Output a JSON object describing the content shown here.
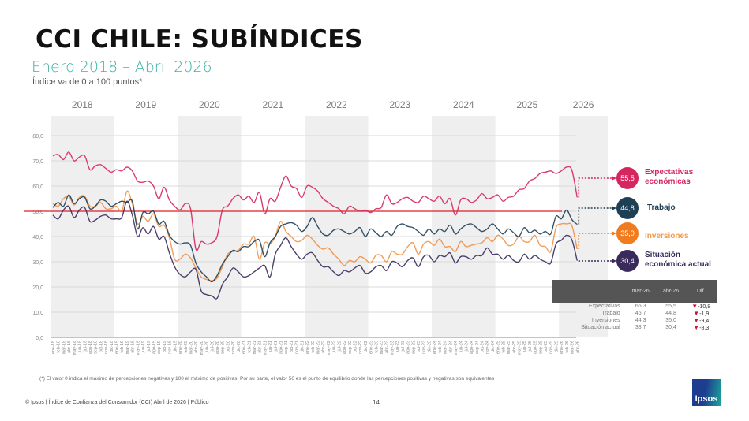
{
  "header": {
    "title": "CCI CHILE: SUBÍNDICES",
    "subtitle": "Enero 2018 – Abril 2026",
    "scale_note": "Índice va de 0 a 100 puntos*"
  },
  "chart_data": {
    "type": "line",
    "title": "CCI CHILE: SUBÍNDICES",
    "subtitle": "Enero 2018 – Abril 2026",
    "ylabel": "",
    "xlabel": "",
    "ylim": [
      0,
      80
    ],
    "yticks": [
      "0,0",
      "10,0",
      "20,0",
      "30,0",
      "40,0",
      "50,0",
      "60,0",
      "70,0",
      "80,0"
    ],
    "grid": true,
    "reference_line": {
      "value": 50,
      "color": "#e01e25"
    },
    "years": [
      "2018",
      "2019",
      "2020",
      "2021",
      "2022",
      "2023",
      "2024",
      "2025",
      "2026"
    ],
    "x": [
      "ene-18",
      "feb-18",
      "mar-18",
      "abr-18",
      "may-18",
      "jun-18",
      "jul-18",
      "ago-18",
      "sep-18",
      "oct-18",
      "nov-18",
      "dic-18",
      "ene-19",
      "feb-19",
      "mar-19",
      "abr-19",
      "may-19",
      "jun-19",
      "jul-19",
      "ago-19",
      "sep-19",
      "oct-19",
      "nov-19",
      "dic-19",
      "ene-20",
      "feb-20",
      "mar-20",
      "abr-20",
      "may-20",
      "jun-20",
      "jul-20",
      "ago-20",
      "sep-20",
      "oct-20",
      "nov-20",
      "dic-20",
      "ene-21",
      "feb-21",
      "mar-21",
      "abr-21",
      "may-21",
      "jun-21",
      "jul-21",
      "ago-21",
      "sep-21",
      "oct-21",
      "nov-21",
      "dic-21",
      "ene-22",
      "feb-22",
      "mar-22",
      "abr-22",
      "may-22",
      "jun-22",
      "jul-22",
      "ago-22",
      "sep-22",
      "oct-22",
      "nov-22",
      "dic-22",
      "ene-23",
      "feb-23",
      "mar-23",
      "abr-23",
      "may-23",
      "jun-23",
      "jul-23",
      "ago-23",
      "sep-23",
      "oct-23",
      "nov-23",
      "dic-23",
      "ene-24",
      "feb-24",
      "mar-24",
      "abr-24",
      "may-24",
      "jun-24",
      "jul-24",
      "ago-24",
      "sep-24",
      "oct-24",
      "nov-24",
      "dic-24",
      "ene-25",
      "feb-25",
      "mar-25",
      "abr-25",
      "may-25",
      "jun-25",
      "jul-25",
      "ago-25",
      "sep-25",
      "oct-25",
      "nov-25",
      "dic-25",
      "ene-26",
      "feb-26",
      "mar-26",
      "abr-26"
    ],
    "series": [
      {
        "name": "Expectativas económicas",
        "color": "#d6265f",
        "values": [
          72.0,
          72.5,
          70.5,
          73.5,
          70.0,
          71.5,
          72.0,
          66.5,
          68.0,
          68.5,
          67.0,
          65.5,
          66.5,
          66.0,
          67.5,
          66.0,
          62.0,
          61.5,
          62.0,
          60.0,
          55.0,
          59.5,
          54.5,
          52.0,
          50.5,
          53.0,
          51.0,
          35.0,
          38.0,
          37.0,
          37.5,
          40.0,
          50.5,
          52.0,
          55.0,
          56.5,
          54.5,
          56.0,
          53.5,
          57.5,
          49.0,
          55.0,
          54.0,
          59.5,
          64.0,
          60.0,
          59.0,
          55.5,
          60.0,
          59.5,
          58.0,
          55.0,
          53.5,
          52.0,
          51.0,
          49.0,
          52.0,
          51.0,
          50.0,
          50.5,
          49.5,
          51.0,
          51.5,
          56.5,
          53.0,
          53.5,
          55.0,
          55.5,
          54.0,
          53.5,
          56.0,
          55.0,
          54.0,
          56.0,
          53.0,
          55.0,
          48.5,
          54.5,
          55.0,
          53.5,
          54.5,
          57.0,
          55.0,
          55.5,
          56.5,
          54.0,
          55.5,
          56.0,
          58.5,
          59.0,
          62.0,
          63.0,
          65.0,
          65.5,
          66.0,
          65.0,
          66.0,
          67.5,
          66.3,
          55.5
        ]
      },
      {
        "name": "Trabajo",
        "color": "#1f3f55",
        "values": [
          51.5,
          53.5,
          52.0,
          56.5,
          53.0,
          55.0,
          55.5,
          51.0,
          52.0,
          54.5,
          54.0,
          52.0,
          53.0,
          54.0,
          53.5,
          54.0,
          43.0,
          49.5,
          49.0,
          50.0,
          45.0,
          46.0,
          40.5,
          38.0,
          37.0,
          37.5,
          36.5,
          29.5,
          26.0,
          24.0,
          22.0,
          24.5,
          29.0,
          32.0,
          34.5,
          34.0,
          36.0,
          36.0,
          38.0,
          38.5,
          32.0,
          37.5,
          40.0,
          44.0,
          45.0,
          45.5,
          44.5,
          42.0,
          44.0,
          47.5,
          44.0,
          41.0,
          40.5,
          42.5,
          43.0,
          42.0,
          41.0,
          42.0,
          43.5,
          40.0,
          43.0,
          41.5,
          40.0,
          42.0,
          40.5,
          44.0,
          45.0,
          44.0,
          43.5,
          42.0,
          40.5,
          43.0,
          41.0,
          43.0,
          42.0,
          44.5,
          41.0,
          43.0,
          44.5,
          45.0,
          43.5,
          42.0,
          43.0,
          45.0,
          43.0,
          41.0,
          43.0,
          41.5,
          40.0,
          43.5,
          41.5,
          42.5,
          41.0,
          42.0,
          41.0,
          48.0,
          47.0,
          50.5,
          46.7,
          44.8
        ]
      },
      {
        "name": "Inversiones",
        "color": "#f07c1f",
        "values": [
          53.0,
          52.0,
          55.0,
          56.0,
          52.5,
          55.5,
          56.0,
          52.0,
          52.0,
          53.5,
          51.0,
          51.0,
          52.0,
          50.0,
          58.0,
          53.0,
          45.0,
          48.0,
          46.0,
          49.0,
          44.0,
          44.5,
          39.5,
          31.0,
          31.0,
          33.0,
          31.5,
          27.5,
          24.0,
          23.0,
          22.5,
          23.5,
          28.0,
          33.0,
          34.0,
          34.5,
          37.0,
          37.0,
          40.0,
          31.0,
          37.5,
          37.0,
          40.0,
          46.0,
          42.0,
          40.0,
          38.0,
          38.5,
          40.5,
          39.0,
          36.5,
          35.0,
          35.5,
          33.0,
          31.0,
          28.5,
          30.5,
          30.0,
          32.0,
          31.0,
          29.5,
          32.5,
          32.5,
          30.0,
          34.0,
          33.0,
          33.0,
          36.0,
          37.5,
          33.0,
          37.0,
          38.0,
          36.5,
          39.0,
          36.0,
          36.0,
          34.0,
          38.0,
          36.0,
          36.5,
          37.0,
          37.5,
          39.5,
          38.0,
          40.5,
          39.0,
          36.5,
          37.0,
          40.0,
          38.0,
          38.0,
          40.5,
          36.5,
          36.0,
          34.0,
          43.5,
          45.0,
          45.0,
          44.3,
          35.0
        ]
      },
      {
        "name": "Situación económica actual",
        "color": "#3a2a5c",
        "values": [
          48.5,
          47.0,
          50.5,
          52.0,
          47.5,
          50.5,
          51.5,
          46.0,
          46.5,
          48.0,
          48.5,
          47.0,
          47.0,
          47.5,
          54.0,
          48.5,
          40.0,
          43.5,
          41.0,
          44.0,
          39.0,
          40.0,
          33.5,
          28.0,
          25.0,
          24.0,
          26.0,
          27.0,
          18.5,
          17.0,
          16.5,
          15.5,
          21.0,
          24.0,
          27.5,
          26.0,
          24.0,
          24.5,
          26.0,
          27.5,
          28.5,
          24.0,
          33.0,
          36.5,
          39.5,
          36.0,
          33.0,
          31.0,
          33.0,
          33.5,
          30.5,
          28.0,
          28.0,
          26.0,
          24.5,
          26.5,
          26.0,
          27.5,
          28.5,
          25.5,
          26.0,
          28.0,
          28.5,
          26.5,
          30.0,
          29.5,
          28.0,
          30.5,
          31.5,
          28.0,
          32.0,
          32.5,
          30.0,
          32.5,
          32.0,
          33.5,
          29.5,
          32.0,
          32.0,
          31.0,
          32.5,
          32.5,
          35.5,
          33.0,
          33.0,
          31.0,
          32.5,
          30.5,
          30.0,
          33.0,
          31.0,
          32.5,
          31.0,
          30.0,
          29.5,
          37.0,
          38.5,
          40.5,
          38.7,
          30.4
        ]
      }
    ],
    "legend": [
      {
        "label_line1": "Expectativas",
        "label_line2": "económicas",
        "value": "55,5"
      },
      {
        "label_line1": "Trabajo",
        "label_line2": "",
        "value": "44,8"
      },
      {
        "label_line1": "Inversiones",
        "label_line2": "",
        "value": "35,0"
      },
      {
        "label_line1": "Situación",
        "label_line2": "económica actual",
        "value": "30,4"
      }
    ],
    "legend_position": "right"
  },
  "summary_table": {
    "headers": [
      "",
      "mar-26",
      "abr-26",
      "Dif."
    ],
    "rows": [
      {
        "label": "Expectativas",
        "mar": "66,3",
        "abr": "55,5",
        "dif": "-10,8"
      },
      {
        "label": "Trabajo",
        "mar": "46,7",
        "abr": "44,8",
        "dif": "-1,9"
      },
      {
        "label": "Inversiones",
        "mar": "44,3",
        "abr": "35,0",
        "dif": "-9,4"
      },
      {
        "label": "Situación actual",
        "mar": "38,7",
        "abr": "30,4",
        "dif": "-8,3"
      }
    ],
    "down_icon": "triangle-down-icon"
  },
  "footnote": "(*) El valor 0 indica el máximo de percepciones negativas y 100 el máximo de positivas. Por su parte, el valor 50 es el punto de equilibrio donde las percepciones positivas y negativas son equivalentes",
  "footer": {
    "source": "© Ipsos | Índice de Confianza del Consumidor (CCI) Abril de 2026 | Público",
    "page_number": "14",
    "logo_text": "Ipsos"
  }
}
